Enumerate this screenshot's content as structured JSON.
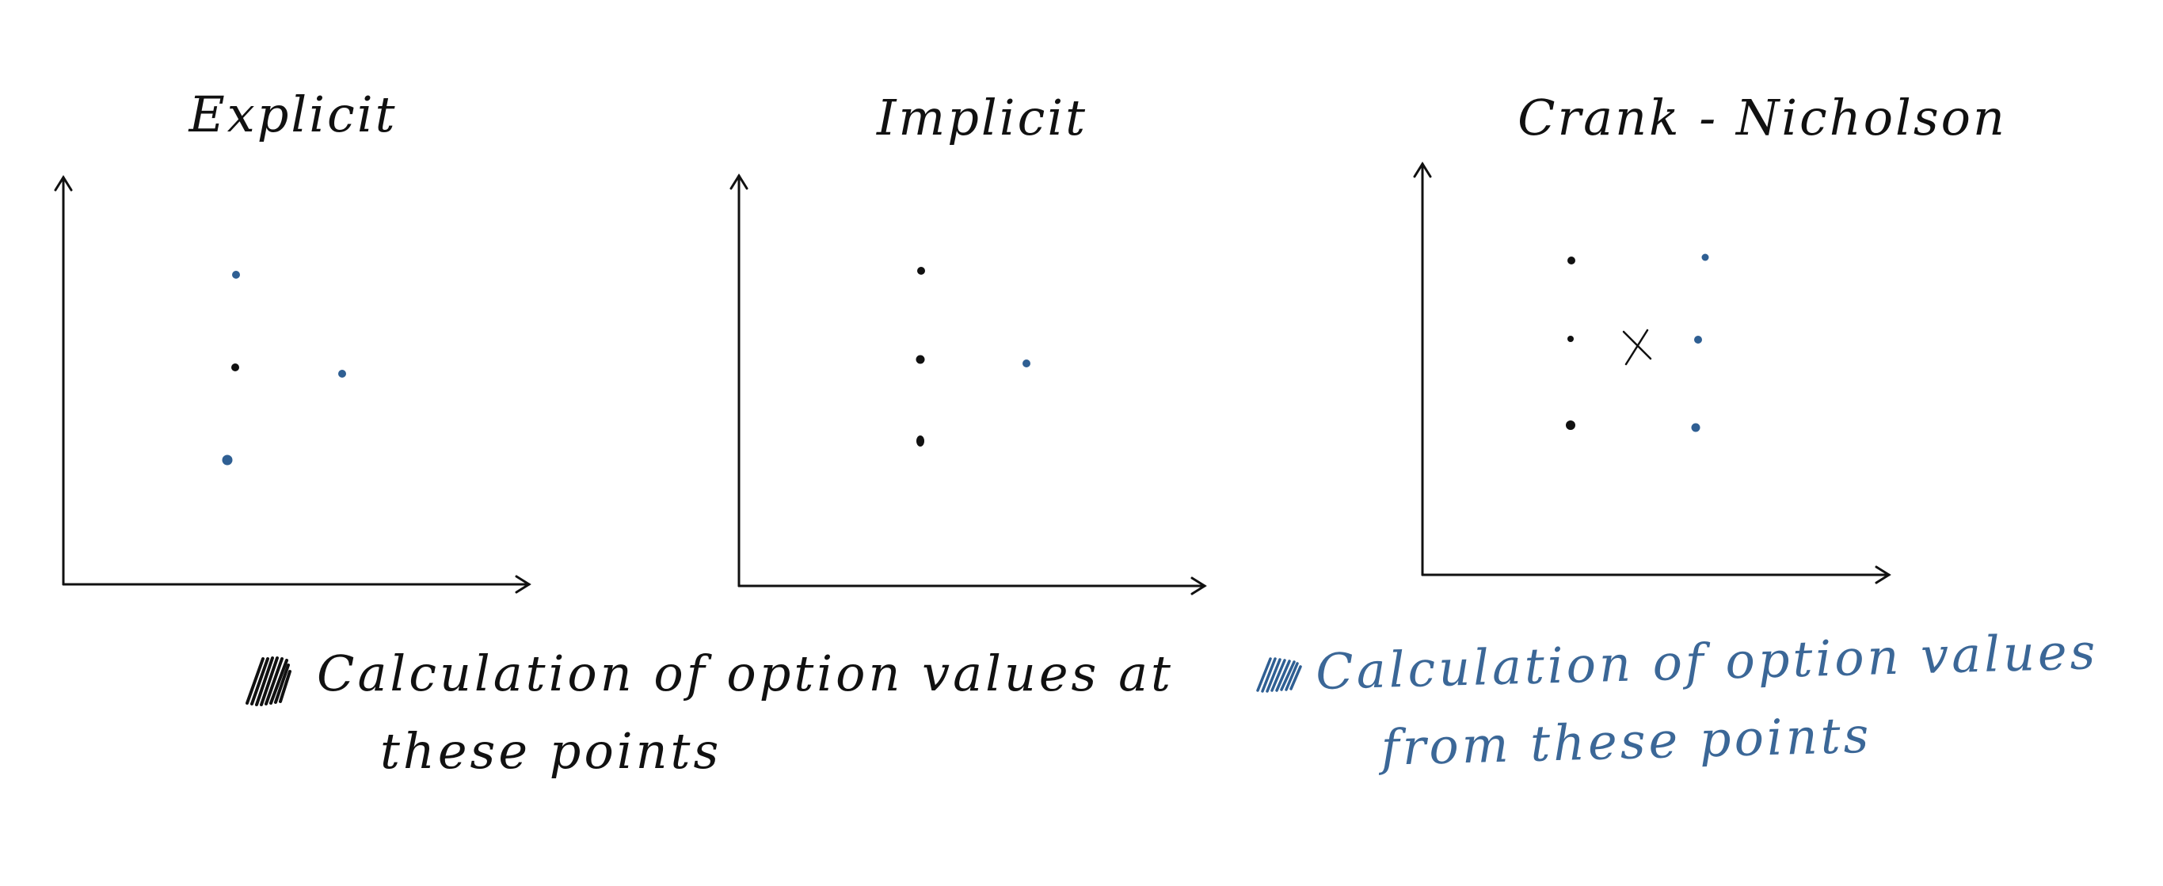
{
  "colors": {
    "known_point": "#111111",
    "computed_point": "#2f5f93",
    "axis": "#111111",
    "blue_text": "#3b6797"
  },
  "panels": [
    {
      "title": "Explicit"
    },
    {
      "title": "Implicit"
    },
    {
      "title": "Crank - Nicholson",
      "center_mark": "×"
    }
  ],
  "legend": {
    "black": {
      "line1": "Calculation of option values at",
      "line2": "these points"
    },
    "blue": {
      "line1": "Calculation of option values",
      "line2": "from these points"
    }
  }
}
